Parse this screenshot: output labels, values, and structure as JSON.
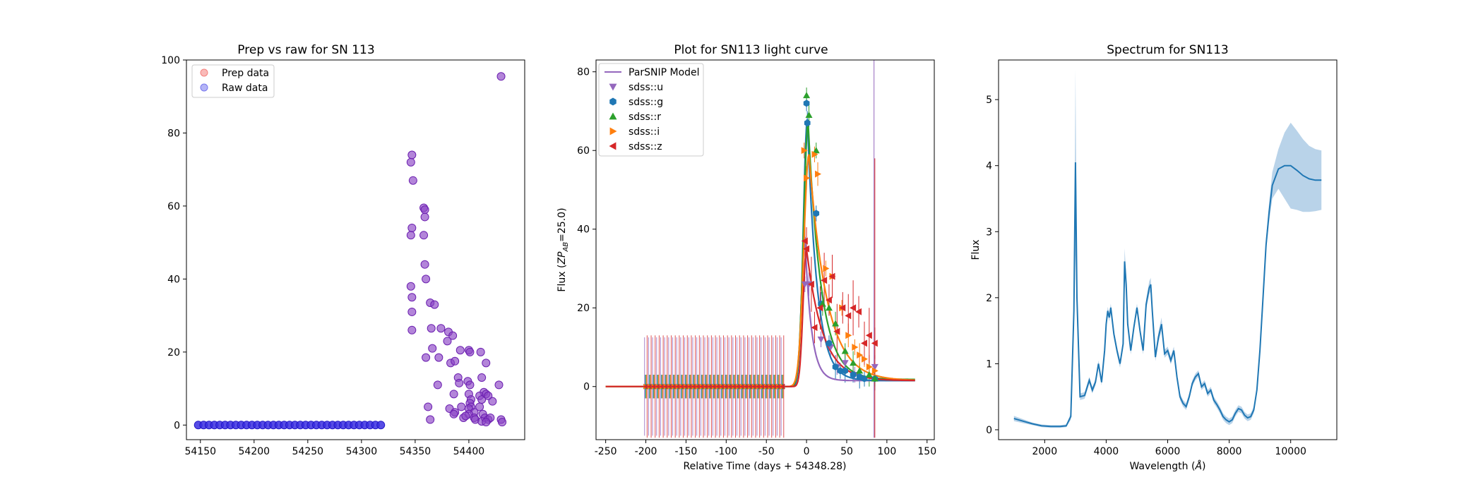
{
  "chart_data": [
    {
      "type": "scatter",
      "title": "Prep vs raw for SN 113",
      "xlabel": "",
      "ylabel": "",
      "xlim": [
        54137,
        54452
      ],
      "ylim": [
        -4,
        100
      ],
      "xticks": [
        54150,
        54200,
        54250,
        54300,
        54350,
        54400
      ],
      "yticks": [
        0,
        20,
        40,
        60,
        80,
        100
      ],
      "legend": {
        "position": "top-left",
        "entries": [
          "Prep data",
          "Raw data"
        ]
      },
      "colors": {
        "prep": "#f4817e",
        "raw": "#7777ee",
        "overlap": "#8a44c4"
      },
      "series": [
        {
          "name": "Prep data",
          "x_range": [
            54148,
            54318
          ],
          "x_step": 5,
          "value": 0,
          "points": [
            [
              54346,
              72
            ],
            [
              54347,
              74
            ],
            [
              54348,
              67
            ],
            [
              54346,
              52
            ],
            [
              54347,
              54
            ],
            [
              54346,
              38
            ],
            [
              54347,
              35
            ],
            [
              54347,
              31
            ],
            [
              54347,
              26
            ],
            [
              54358,
              59.5
            ],
            [
              54359,
              59
            ],
            [
              54359,
              57
            ],
            [
              54358,
              52
            ],
            [
              54359,
              44
            ],
            [
              54360,
              40
            ],
            [
              54364,
              33.5
            ],
            [
              54368,
              33
            ],
            [
              54360,
              18.5
            ],
            [
              54365,
              26.5
            ],
            [
              54374,
              26.5
            ],
            [
              54366,
              21
            ],
            [
              54372,
              18.5
            ],
            [
              54362,
              5
            ],
            [
              54364,
              1.5
            ],
            [
              54371,
              11
            ],
            [
              54381,
              25.5
            ],
            [
              54380,
              23
            ],
            [
              54385,
              24.5
            ],
            [
              54383,
              17
            ],
            [
              54387,
              17.5
            ],
            [
              54386,
              8.5
            ],
            [
              54392,
              20.5
            ],
            [
              54390,
              13
            ],
            [
              54391,
              11.5
            ],
            [
              54393,
              5
            ],
            [
              54382,
              4.5
            ],
            [
              54387,
              3.5
            ],
            [
              54386,
              3
            ],
            [
              54395,
              2
            ],
            [
              54400,
              20.5
            ],
            [
              54401,
              20
            ],
            [
              54399,
              12
            ],
            [
              54401,
              11
            ],
            [
              54400,
              8.5
            ],
            [
              54402,
              7
            ],
            [
              54401,
              6
            ],
            [
              54402,
              5
            ],
            [
              54400,
              4.5
            ],
            [
              54405,
              3.5
            ],
            [
              54400,
              3
            ],
            [
              54397,
              2.5
            ],
            [
              54405,
              2
            ],
            [
              54406,
              1.5
            ],
            [
              54411,
              20
            ],
            [
              54416,
              17
            ],
            [
              54412,
              13
            ],
            [
              54414,
              9
            ],
            [
              54410,
              8
            ],
            [
              54412,
              7
            ],
            [
              54416,
              8.5
            ],
            [
              54418,
              8
            ],
            [
              54410,
              5
            ],
            [
              54413,
              3
            ],
            [
              54415,
              2
            ],
            [
              54418,
              1.5
            ],
            [
              54420,
              2
            ],
            [
              54412,
              1
            ],
            [
              54416,
              0.8
            ],
            [
              54422,
              6.5
            ],
            [
              54430,
              95.5
            ],
            [
              54428,
              11
            ],
            [
              54430,
              1.5
            ],
            [
              54431,
              0.8
            ]
          ]
        },
        {
          "name": "Raw data",
          "same_as": "Prep data"
        }
      ]
    },
    {
      "type": "line",
      "title": "Plot for SN113 light curve",
      "xlabel": "Relative Time (days + 54348.28)",
      "ylabel_main": "Flux (",
      "ylabel_zp": "ZP",
      "ylabel_zp_sub": "AB",
      "ylabel_tail": "=25.0)",
      "xlim": [
        -262,
        159
      ],
      "ylim": [
        -13.5,
        83
      ],
      "xticks": [
        -250,
        -200,
        -150,
        -100,
        -50,
        0,
        50,
        100,
        150
      ],
      "yticks": [
        0,
        20,
        40,
        60,
        80
      ],
      "legend": {
        "position": "top-left",
        "entries": [
          "ParSNIP Model",
          "sdss::u",
          "sdss::g",
          "sdss::r",
          "sdss::i",
          "sdss::z"
        ]
      },
      "colors": {
        "u": "#9467bd",
        "g": "#1f77b4",
        "r": "#2ca02c",
        "i": "#ff7f0e",
        "z": "#d62728"
      },
      "series": [
        {
          "name": "sdss::u",
          "model": {
            "peak_t": -2,
            "peak": 38,
            "rise": 6,
            "fall": 8,
            "base": 1.5
          },
          "points": [
            [
              -2,
              26
            ],
            [
              3,
              26
            ],
            [
              18,
              12
            ],
            [
              30,
              10
            ],
            [
              38,
              5
            ],
            [
              48,
              6
            ],
            [
              60,
              3
            ],
            [
              85,
              5
            ]
          ]
        },
        {
          "name": "sdss::g",
          "model": {
            "peak_t": 1,
            "peak": 68,
            "rise": 7,
            "fall": 12,
            "base": 1.5
          },
          "points": [
            [
              0,
              72
            ],
            [
              1,
              67
            ],
            [
              12,
              44
            ],
            [
              18,
              21
            ],
            [
              28,
              11
            ],
            [
              36,
              5
            ],
            [
              42,
              4
            ],
            [
              48,
              4
            ],
            [
              58,
              3
            ],
            [
              66,
              2.5
            ],
            [
              72,
              2
            ],
            [
              85,
              2
            ]
          ]
        },
        {
          "name": "sdss::r",
          "model": {
            "peak_t": 2,
            "peak": 67,
            "rise": 8,
            "fall": 16,
            "base": 1.8
          },
          "points": [
            [
              0,
              74
            ],
            [
              3,
              69
            ],
            [
              12,
              60
            ],
            [
              20,
              21
            ],
            [
              28,
              20
            ],
            [
              36,
              16
            ],
            [
              48,
              9
            ],
            [
              58,
              6
            ],
            [
              66,
              4
            ],
            [
              78,
              3
            ],
            [
              85,
              2
            ]
          ]
        },
        {
          "name": "sdss::i",
          "model": {
            "peak_t": 3,
            "peak": 59,
            "rise": 9,
            "fall": 22,
            "base": 1.5
          },
          "points": [
            [
              -3,
              60
            ],
            [
              0,
              53
            ],
            [
              10,
              59
            ],
            [
              14,
              54
            ],
            [
              24,
              30
            ],
            [
              32,
              28
            ],
            [
              44,
              20
            ],
            [
              52,
              13
            ],
            [
              60,
              10
            ],
            [
              66,
              8
            ],
            [
              72,
              7
            ],
            [
              78,
              5
            ],
            [
              85,
              4
            ]
          ]
        },
        {
          "name": "sdss::z",
          "model": {
            "peak_t": 0,
            "peak": 35,
            "rise": 6,
            "fall": 20,
            "base": 1.5
          },
          "points": [
            [
              -2,
              37
            ],
            [
              0,
              35
            ],
            [
              6,
              26
            ],
            [
              10,
              15
            ],
            [
              17,
              20
            ],
            [
              22,
              27
            ],
            [
              28,
              22
            ],
            [
              32,
              28
            ],
            [
              38,
              14
            ],
            [
              45,
              20
            ],
            [
              52,
              18
            ],
            [
              58,
              20
            ],
            [
              65,
              19
            ],
            [
              72,
              11
            ],
            [
              78,
              13
            ],
            [
              85,
              11
            ]
          ]
        }
      ],
      "baseline_points": {
        "t_range": [
          -200,
          -30
        ],
        "t_step": 5,
        "value": 0
      }
    },
    {
      "type": "line",
      "title": "Spectrum for SN113",
      "xlabel_main": "Wavelength (",
      "xlabel_unit": "Å",
      "xlabel_tail": ")",
      "ylabel": "Flux",
      "xlim": [
        500,
        11500
      ],
      "ylim": [
        -0.15,
        5.6
      ],
      "xticks": [
        2000,
        4000,
        6000,
        8000,
        10000
      ],
      "yticks": [
        0,
        1,
        2,
        3,
        4,
        5
      ],
      "colors": {
        "line": "#1f77b4",
        "band": "#a8c8e4"
      },
      "series": [
        {
          "name": "",
          "x": [
            1000,
            1300,
            1600,
            1900,
            2200,
            2500,
            2700,
            2850,
            2950,
            3000,
            3050,
            3150,
            3300,
            3450,
            3550,
            3650,
            3750,
            3850,
            3950,
            4000,
            4050,
            4100,
            4150,
            4250,
            4350,
            4450,
            4550,
            4600,
            4650,
            4700,
            4800,
            4900,
            5000,
            5100,
            5200,
            5300,
            5400,
            5450,
            5500,
            5600,
            5700,
            5800,
            5900,
            6000,
            6100,
            6200,
            6300,
            6400,
            6500,
            6600,
            6700,
            6800,
            6900,
            7000,
            7100,
            7200,
            7300,
            7400,
            7500,
            7600,
            7700,
            7800,
            7900,
            8000,
            8100,
            8200,
            8300,
            8400,
            8500,
            8600,
            8700,
            8800,
            8900,
            9000,
            9100,
            9200,
            9300,
            9400,
            9600,
            9800,
            10000,
            10200,
            10400,
            10600,
            10800,
            11000
          ],
          "y": [
            0.17,
            0.13,
            0.09,
            0.06,
            0.05,
            0.05,
            0.06,
            0.2,
            1.8,
            4.05,
            2.0,
            0.5,
            0.52,
            0.75,
            0.6,
            0.72,
            1.0,
            0.72,
            1.2,
            1.6,
            1.8,
            1.7,
            1.85,
            1.45,
            1.2,
            1.0,
            1.3,
            2.55,
            2.2,
            1.6,
            1.2,
            1.55,
            1.85,
            1.5,
            1.2,
            1.9,
            2.15,
            2.2,
            1.8,
            1.1,
            1.4,
            1.6,
            1.15,
            1.2,
            1.05,
            1.2,
            0.8,
            0.5,
            0.4,
            0.35,
            0.5,
            0.7,
            0.8,
            0.85,
            0.65,
            0.7,
            0.55,
            0.6,
            0.45,
            0.38,
            0.3,
            0.2,
            0.15,
            0.12,
            0.15,
            0.25,
            0.32,
            0.3,
            0.22,
            0.18,
            0.2,
            0.3,
            0.6,
            1.2,
            2.0,
            2.8,
            3.3,
            3.7,
            3.95,
            4.0,
            4.0,
            3.93,
            3.85,
            3.8,
            3.78,
            3.78
          ],
          "y_err": [
            0.04,
            0.03,
            0.02,
            0.02,
            0.02,
            0.02,
            0.02,
            0.05,
            0.2,
            1.4,
            0.3,
            0.05,
            0.05,
            0.05,
            0.05,
            0.05,
            0.05,
            0.05,
            0.05,
            0.06,
            0.06,
            0.06,
            0.06,
            0.06,
            0.06,
            0.06,
            0.06,
            0.2,
            0.15,
            0.06,
            0.06,
            0.06,
            0.06,
            0.06,
            0.06,
            0.08,
            0.1,
            0.1,
            0.06,
            0.06,
            0.08,
            0.1,
            0.06,
            0.06,
            0.06,
            0.06,
            0.05,
            0.05,
            0.05,
            0.05,
            0.05,
            0.05,
            0.05,
            0.05,
            0.05,
            0.05,
            0.05,
            0.05,
            0.05,
            0.05,
            0.05,
            0.05,
            0.05,
            0.05,
            0.05,
            0.05,
            0.05,
            0.05,
            0.05,
            0.05,
            0.05,
            0.05,
            0.05,
            0.06,
            0.08,
            0.1,
            0.15,
            0.2,
            0.3,
            0.5,
            0.65,
            0.6,
            0.55,
            0.5,
            0.47,
            0.45
          ]
        }
      ]
    }
  ]
}
